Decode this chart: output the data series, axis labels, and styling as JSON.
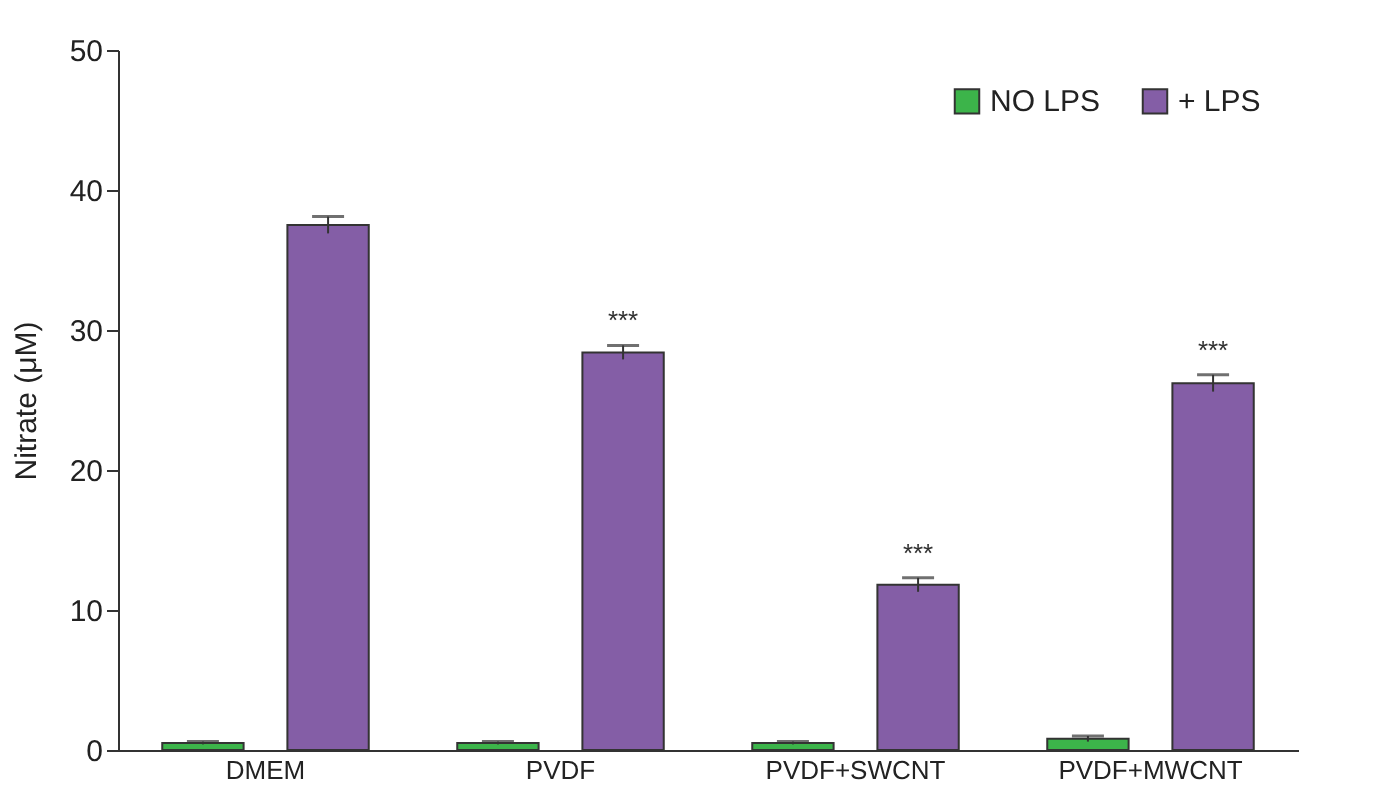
{
  "chart_data": {
    "type": "bar",
    "ylabel": "Nitrate (μM)",
    "categories": [
      "DMEM",
      "PVDF",
      "PVDF+SWCNT",
      "PVDF+MWCNT"
    ],
    "series": [
      {
        "name": "NO LPS",
        "color": "#3cb44a",
        "values": [
          0.5,
          0.5,
          0.5,
          0.8
        ],
        "errors": [
          0.1,
          0.1,
          0.1,
          0.2
        ]
      },
      {
        "name": "+ LPS",
        "color": "#845ea6",
        "values": [
          37.5,
          28.4,
          11.8,
          26.2
        ],
        "errors": [
          0.6,
          0.5,
          0.5,
          0.6
        ]
      }
    ],
    "ylim": [
      0,
      50
    ],
    "yticks": [
      0,
      10,
      20,
      30,
      40,
      50
    ],
    "grid": false,
    "legend": "top right",
    "annotations": [
      "***",
      "***",
      "***"
    ]
  }
}
